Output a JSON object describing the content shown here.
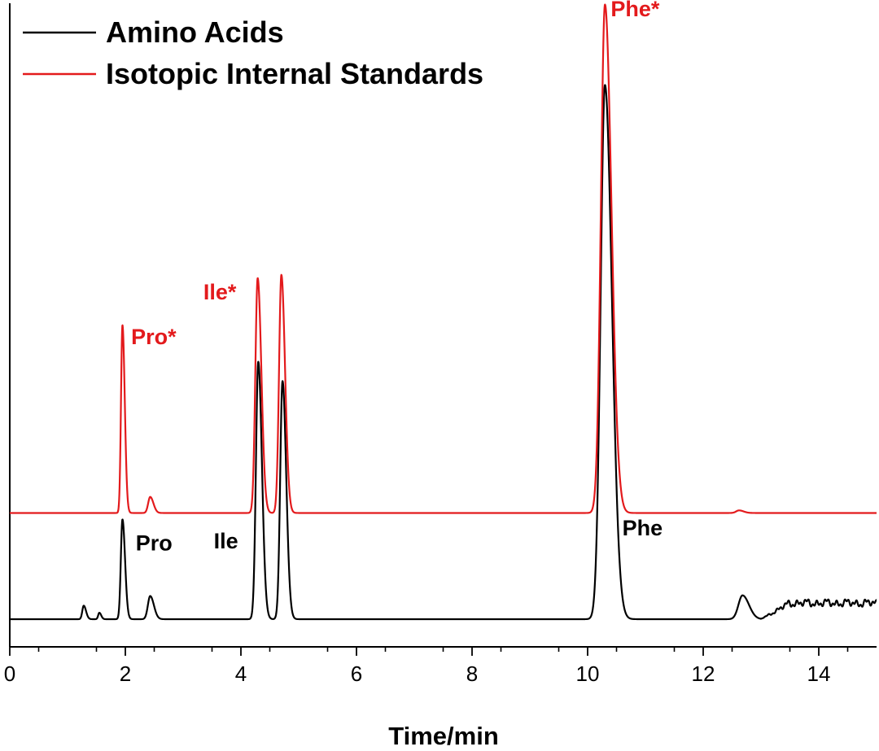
{
  "chart_data": {
    "type": "line",
    "title": "",
    "xlabel": "Time/min",
    "ylabel": "",
    "xlim": [
      0,
      15
    ],
    "ylim": [
      0,
      100
    ],
    "x_ticks": [
      0,
      2,
      4,
      6,
      8,
      10,
      12,
      14
    ],
    "x_tick_labels": [
      "0",
      "2",
      "4",
      "6",
      "8",
      "10",
      "12",
      "14"
    ],
    "grid": false,
    "legend": {
      "position": "top-left",
      "entries": [
        {
          "name": "Amino Acids",
          "color": "#000000"
        },
        {
          "name": "Isotopic Internal Standards",
          "color": "#e31a1c"
        }
      ]
    },
    "series": [
      {
        "name": "Amino Acids",
        "color": "#000000",
        "baseline": 4.3,
        "peaks": [
          {
            "x": 1.28,
            "height": 2.1,
            "width": 0.025
          },
          {
            "x": 1.55,
            "height": 1.0,
            "width": 0.02
          },
          {
            "x": 1.95,
            "height": 15.5,
            "width": 0.028
          },
          {
            "x": 2.43,
            "height": 3.6,
            "width": 0.04
          },
          {
            "x": 4.3,
            "height": 40.0,
            "width": 0.04
          },
          {
            "x": 4.72,
            "height": 37.0,
            "width": 0.04
          },
          {
            "x": 10.3,
            "height": 83.0,
            "width": 0.075
          },
          {
            "x": 12.68,
            "height": 3.7,
            "width": 0.07
          }
        ],
        "tail_region": {
          "from": 13.0,
          "to": 15.0,
          "level": 2.5
        }
      },
      {
        "name": "Isotopic Internal Standards",
        "color": "#e31a1c",
        "baseline": 20.8,
        "peaks": [
          {
            "x": 1.95,
            "height": 29.2,
            "width": 0.025
          },
          {
            "x": 2.43,
            "height": 2.5,
            "width": 0.035
          },
          {
            "x": 4.29,
            "height": 36.5,
            "width": 0.04
          },
          {
            "x": 4.7,
            "height": 37.0,
            "width": 0.04
          },
          {
            "x": 10.3,
            "height": 79.0,
            "width": 0.07
          },
          {
            "x": 12.62,
            "height": 0.4,
            "width": 0.05
          }
        ]
      }
    ],
    "annotations": [
      {
        "text": "Pro*",
        "x": 2.1,
        "y": 47.0,
        "color": "#e31a1c"
      },
      {
        "text": "Ile*",
        "x": 3.35,
        "y": 54.0,
        "color": "#e31a1c"
      },
      {
        "text": "Phe*",
        "x": 10.4,
        "y": 98.0,
        "color": "#e31a1c"
      },
      {
        "text": "Pro",
        "x": 2.18,
        "y": 15.0,
        "color": "#000000"
      },
      {
        "text": "Ile",
        "x": 3.53,
        "y": 15.3,
        "color": "#000000"
      },
      {
        "text": "Phe",
        "x": 10.6,
        "y": 17.3,
        "color": "#000000"
      }
    ]
  }
}
